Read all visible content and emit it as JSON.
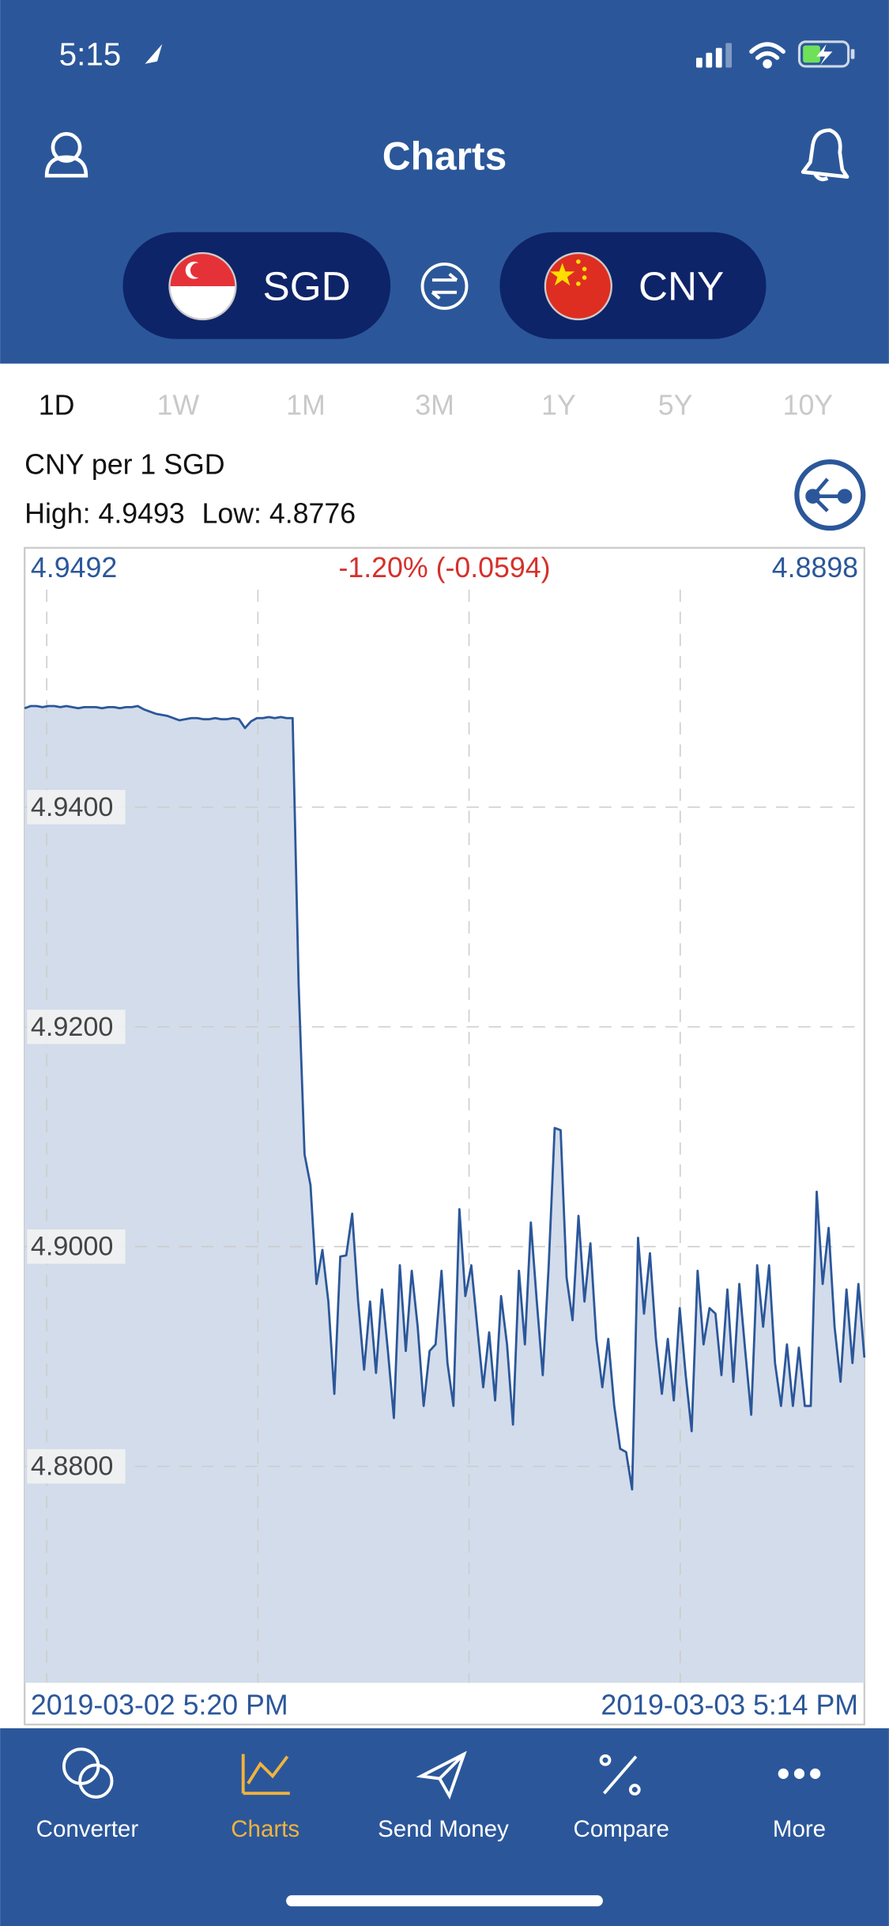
{
  "status_bar": {
    "time": "5:15"
  },
  "header": {
    "title": "Charts",
    "base_currency": "SGD",
    "quote_currency": "CNY"
  },
  "tabs": [
    "1D",
    "1W",
    "1M",
    "3M",
    "1Y",
    "5Y",
    "10Y"
  ],
  "chart_data": {
    "type": "area",
    "subtitle": "CNY per 1 SGD",
    "high_label": "High: 4.9493",
    "low_label": "Low: 4.8776",
    "start_value_label": "4.9492",
    "change_label": "-1.20% (-0.0594)",
    "end_value_label": "4.8898",
    "x_labels": [
      "2019-03-02 5:20 PM",
      "2019-03-03 5:14 PM"
    ],
    "color": "#2b579a",
    "fill_color": "#d3dcea",
    "ylim": [
      4.8603,
      4.9636
    ],
    "yticks": [
      {
        "value": 4.88,
        "label": "4.8800"
      },
      {
        "value": 4.9,
        "label": "4.9000"
      },
      {
        "value": 4.92,
        "label": "4.9200"
      },
      {
        "value": 4.94,
        "label": "4.9400"
      }
    ],
    "grid": true,
    "values": [
      4.949,
      4.9492,
      4.9492,
      4.9491,
      4.9492,
      4.9492,
      4.9491,
      4.9492,
      4.9491,
      4.949,
      4.9491,
      4.9491,
      4.9491,
      4.949,
      4.9491,
      4.9491,
      4.949,
      4.9491,
      4.9491,
      4.9492,
      4.9489,
      4.9487,
      4.9485,
      4.9484,
      4.9483,
      4.9481,
      4.9479,
      4.948,
      4.9481,
      4.9481,
      4.948,
      4.948,
      4.9481,
      4.948,
      4.948,
      4.9481,
      4.948,
      4.9472,
      4.9478,
      4.9481,
      4.9481,
      4.9482,
      4.9481,
      4.9482,
      4.9481,
      4.9481,
      4.924,
      4.9084,
      4.9056,
      4.8966,
      4.8997,
      4.895,
      4.8866,
      4.8991,
      4.8992,
      4.903,
      4.895,
      4.8888,
      4.895,
      4.8885,
      4.8961,
      4.8905,
      4.8844,
      4.8983,
      4.8905,
      4.8978,
      4.8927,
      4.8855,
      4.8905,
      4.8911,
      4.8978,
      4.8894,
      4.8855,
      4.9034,
      4.8955,
      4.8983,
      4.8927,
      4.8872,
      4.8922,
      4.886,
      4.8955,
      4.8911,
      4.8838,
      4.8978,
      4.8911,
      4.9022,
      4.895,
      4.8883,
      4.8983,
      4.9108,
      4.9106,
      4.8972,
      4.8933,
      4.9028,
      4.895,
      4.9003,
      4.8916,
      4.8872,
      4.8916,
      4.8855,
      4.8816,
      4.8813,
      4.8779,
      4.9008,
      4.8939,
      4.8994,
      4.8916,
      4.8866,
      4.8916,
      4.886,
      4.8944,
      4.8883,
      4.8832,
      4.8978,
      4.8911,
      4.8944,
      4.8939,
      4.8883,
      4.8961,
      4.8877,
      4.8966,
      4.8905,
      4.8847,
      4.8983,
      4.8927,
      4.8983,
      4.8894,
      4.8855,
      4.8911,
      4.8855,
      4.8908,
      4.8855,
      4.8855,
      4.905,
      4.8966,
      4.9017,
      4.8927,
      4.8877,
      4.8961,
      4.8894,
      4.8966,
      4.8899
    ]
  },
  "nav": [
    "Converter",
    "Charts",
    "Send Money",
    "Compare",
    "More"
  ]
}
